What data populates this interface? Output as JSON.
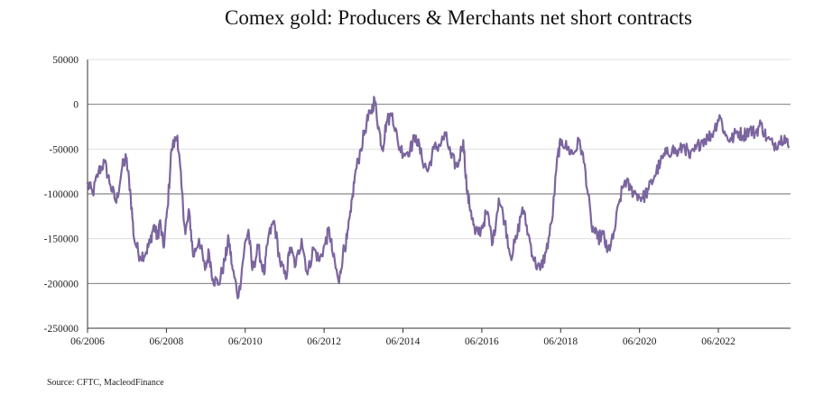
{
  "chart_data": {
    "type": "line",
    "title": "Comex gold: Producers & Merchants net short contracts",
    "source": "Source: CFTC, MacleodFinance",
    "xlabel": "",
    "ylabel": "",
    "ylim": [
      -250000,
      50000
    ],
    "yticks": [
      50000,
      0,
      -50000,
      -100000,
      -150000,
      -200000,
      -250000
    ],
    "ytick_labels": [
      "50000",
      "0",
      "-50000",
      "-100000",
      "-150000",
      "-200000",
      "-250000"
    ],
    "xlim": [
      2006.42,
      2024.25
    ],
    "xticks": [
      2006.42,
      2008.42,
      2010.42,
      2012.42,
      2014.42,
      2016.42,
      2018.42,
      2020.42,
      2022.42
    ],
    "xtick_labels": [
      "06/2006",
      "06/2008",
      "06/2010",
      "06/2012",
      "06/2014",
      "06/2016",
      "06/2018",
      "06/2020",
      "06/2022"
    ],
    "grid": "horizontal",
    "line_color": "#7b659e",
    "series": [
      {
        "name": "Producers & Merchants net short",
        "x": [
          2006.42,
          2006.55,
          2006.7,
          2006.85,
          2007.0,
          2007.15,
          2007.3,
          2007.4,
          2007.5,
          2007.6,
          2007.75,
          2007.9,
          2008.0,
          2008.1,
          2008.2,
          2008.25,
          2008.35,
          2008.45,
          2008.55,
          2008.7,
          2008.8,
          2008.9,
          2009.0,
          2009.1,
          2009.25,
          2009.4,
          2009.5,
          2009.6,
          2009.75,
          2009.9,
          2010.0,
          2010.1,
          2010.25,
          2010.4,
          2010.5,
          2010.6,
          2010.75,
          2010.9,
          2011.0,
          2011.15,
          2011.3,
          2011.45,
          2011.55,
          2011.7,
          2011.85,
          2012.0,
          2012.15,
          2012.3,
          2012.45,
          2012.55,
          2012.65,
          2012.8,
          2012.9,
          2013.0,
          2013.1,
          2013.2,
          2013.35,
          2013.5,
          2013.6,
          2013.7,
          2013.8,
          2013.9,
          2014.0,
          2014.15,
          2014.3,
          2014.45,
          2014.6,
          2014.75,
          2014.9,
          2015.05,
          2015.2,
          2015.35,
          2015.5,
          2015.65,
          2015.8,
          2015.95,
          2016.05,
          2016.15,
          2016.25,
          2016.4,
          2016.55,
          2016.7,
          2016.85,
          2017.0,
          2017.15,
          2017.3,
          2017.45,
          2017.6,
          2017.75,
          2017.9,
          2018.05,
          2018.2,
          2018.35,
          2018.45,
          2018.6,
          2018.75,
          2018.9,
          2019.05,
          2019.2,
          2019.35,
          2019.5,
          2019.6,
          2019.75,
          2019.9,
          2020.05,
          2020.2,
          2020.35,
          2020.5,
          2020.65,
          2020.8,
          2020.95,
          2021.1,
          2021.25,
          2021.4,
          2021.55,
          2021.7,
          2021.85,
          2022.0,
          2022.15,
          2022.3,
          2022.45,
          2022.6,
          2022.75,
          2022.9,
          2023.05,
          2023.2,
          2023.35,
          2023.5,
          2023.65,
          2023.8,
          2023.95,
          2024.1,
          2024.2
        ],
        "values": [
          -88000,
          -100000,
          -75000,
          -65000,
          -90000,
          -110000,
          -70000,
          -60000,
          -95000,
          -150000,
          -170000,
          -165000,
          -155000,
          -135000,
          -150000,
          -130000,
          -160000,
          -115000,
          -50000,
          -35000,
          -90000,
          -145000,
          -120000,
          -170000,
          -150000,
          -185000,
          -165000,
          -195000,
          -200000,
          -175000,
          -150000,
          -185000,
          -215000,
          -160000,
          -140000,
          -185000,
          -160000,
          -190000,
          -150000,
          -130000,
          -175000,
          -195000,
          -160000,
          -180000,
          -150000,
          -190000,
          -160000,
          -175000,
          -155000,
          -140000,
          -170000,
          -200000,
          -165000,
          -150000,
          -120000,
          -80000,
          -50000,
          -20000,
          -10000,
          5000,
          -25000,
          -50000,
          -20000,
          -10000,
          -45000,
          -55000,
          -50000,
          -35000,
          -60000,
          -75000,
          -50000,
          -45000,
          -35000,
          -60000,
          -70000,
          -40000,
          -100000,
          -120000,
          -145000,
          -140000,
          -120000,
          -155000,
          -105000,
          -130000,
          -170000,
          -150000,
          -115000,
          -145000,
          -175000,
          -185000,
          -165000,
          -130000,
          -55000,
          -40000,
          -50000,
          -55000,
          -40000,
          -75000,
          -135000,
          -150000,
          -145000,
          -165000,
          -150000,
          -110000,
          -85000,
          -95000,
          -100000,
          -105000,
          -95000,
          -80000,
          -65000,
          -55000,
          -50000,
          -55000,
          -45000,
          -60000,
          -50000,
          -40000,
          -38000,
          -30000,
          -12000,
          -35000,
          -40000,
          -30000,
          -35000,
          -28000,
          -32000,
          -22000,
          -38000,
          -45000,
          -42000,
          -35000,
          -48000
        ]
      }
    ]
  }
}
